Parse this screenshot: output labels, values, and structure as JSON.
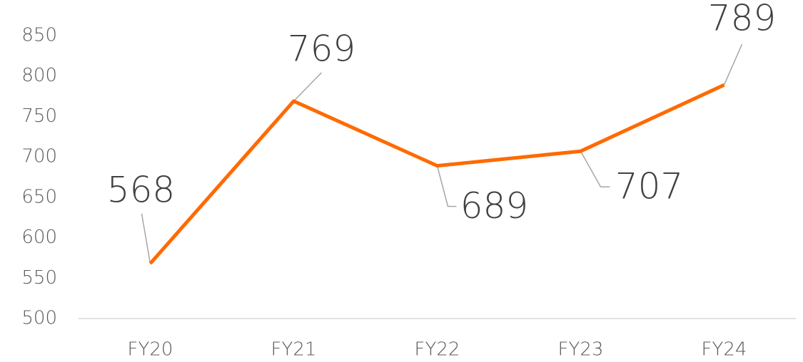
{
  "chart_data": {
    "type": "line",
    "categories": [
      "FY20",
      "FY21",
      "FY22",
      "FY23",
      "FY24"
    ],
    "series": [
      {
        "color": "#ff6a00",
        "values": [
          568,
          769,
          689,
          707,
          789
        ]
      }
    ],
    "ylim": [
      500,
      850
    ],
    "yticks": [
      500,
      550,
      600,
      650,
      700,
      750,
      800,
      850
    ],
    "grid": false
  }
}
